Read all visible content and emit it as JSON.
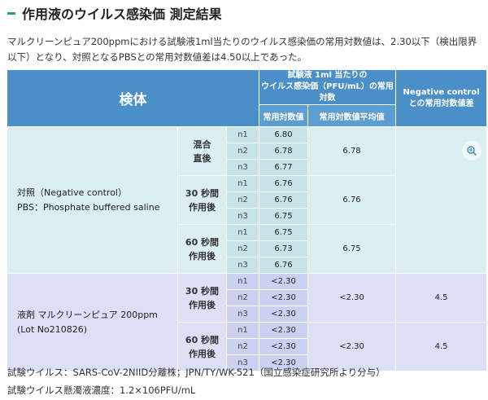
{
  "title": "作用液のウイルス感染価 測定結果",
  "intro": "マルクリーンピュア200ppmにおける試験液1ml当たりのウイルス感染価の常用対数値は、2.30以下（検出限界以下）となり、対照となるPBSとの常用対数値差は4.50以上であった。",
  "table": {
    "header": {
      "specimen": "検体",
      "group_line1": "試験液 1ml 当たりの",
      "group_line2": "ウイルス感染価（PFU/mL）の常用対数",
      "neg_line1": "Negative control",
      "neg_line2": "との常用対数値差",
      "col_log": "常用対数値",
      "col_avg": "常用対数値平均値"
    },
    "control": {
      "label_line1": "対照（Negative control）",
      "label_line2": "PBS：Phosphate buffered saline",
      "groups": [
        {
          "cond1": "混合",
          "cond2": "直後",
          "rows": [
            {
              "n": "n1",
              "v": "6.80"
            },
            {
              "n": "n2",
              "v": "6.78"
            },
            {
              "n": "n3",
              "v": "6.77"
            }
          ],
          "avg": "6.78"
        },
        {
          "cond1": "30 秒間",
          "cond2": "作用後",
          "rows": [
            {
              "n": "n1",
              "v": "6.76"
            },
            {
              "n": "n2",
              "v": "6.76"
            },
            {
              "n": "n3",
              "v": "6.75"
            }
          ],
          "avg": "6.76"
        },
        {
          "cond1": "60 秒間",
          "cond2": "作用後",
          "rows": [
            {
              "n": "n1",
              "v": "6.75"
            },
            {
              "n": "n2",
              "v": "6.73"
            },
            {
              "n": "n3",
              "v": "6.76"
            }
          ],
          "avg": "6.75"
        }
      ]
    },
    "test": {
      "label_line1": "液剤 マルクリーンピュア 200ppm",
      "label_line2": "(Lot No210826)",
      "groups": [
        {
          "cond1": "30 秒間",
          "cond2": "作用後",
          "rows": [
            {
              "n": "n1",
              "v": "<2.30"
            },
            {
              "n": "n2",
              "v": "<2.30"
            },
            {
              "n": "n3",
              "v": "<2.30"
            }
          ],
          "avg": "<2.30",
          "diff": "4.5"
        },
        {
          "cond1": "60 秒間",
          "cond2": "作用後",
          "rows": [
            {
              "n": "n1",
              "v": "<2.30"
            },
            {
              "n": "n2",
              "v": "<2.30"
            },
            {
              "n": "n3",
              "v": "<2.30"
            }
          ],
          "avg": "<2.30",
          "diff": "4.5"
        }
      ]
    }
  },
  "footer": {
    "line1": "試験ウイルス：SARS-CoV-2NIID分離株；JPN/TY/WK-521（国立感染症研究所より分与）",
    "line2": "試験ウイルス懸濁液濃度：1.2×106PFU/mL"
  },
  "icons": {
    "zoom": "zoom-icon"
  },
  "colors": {
    "header": "#4a8fc7",
    "control_bg": "#dbeef1",
    "test_bg": "#dcdff6",
    "accent": "#2a9a8c"
  }
}
